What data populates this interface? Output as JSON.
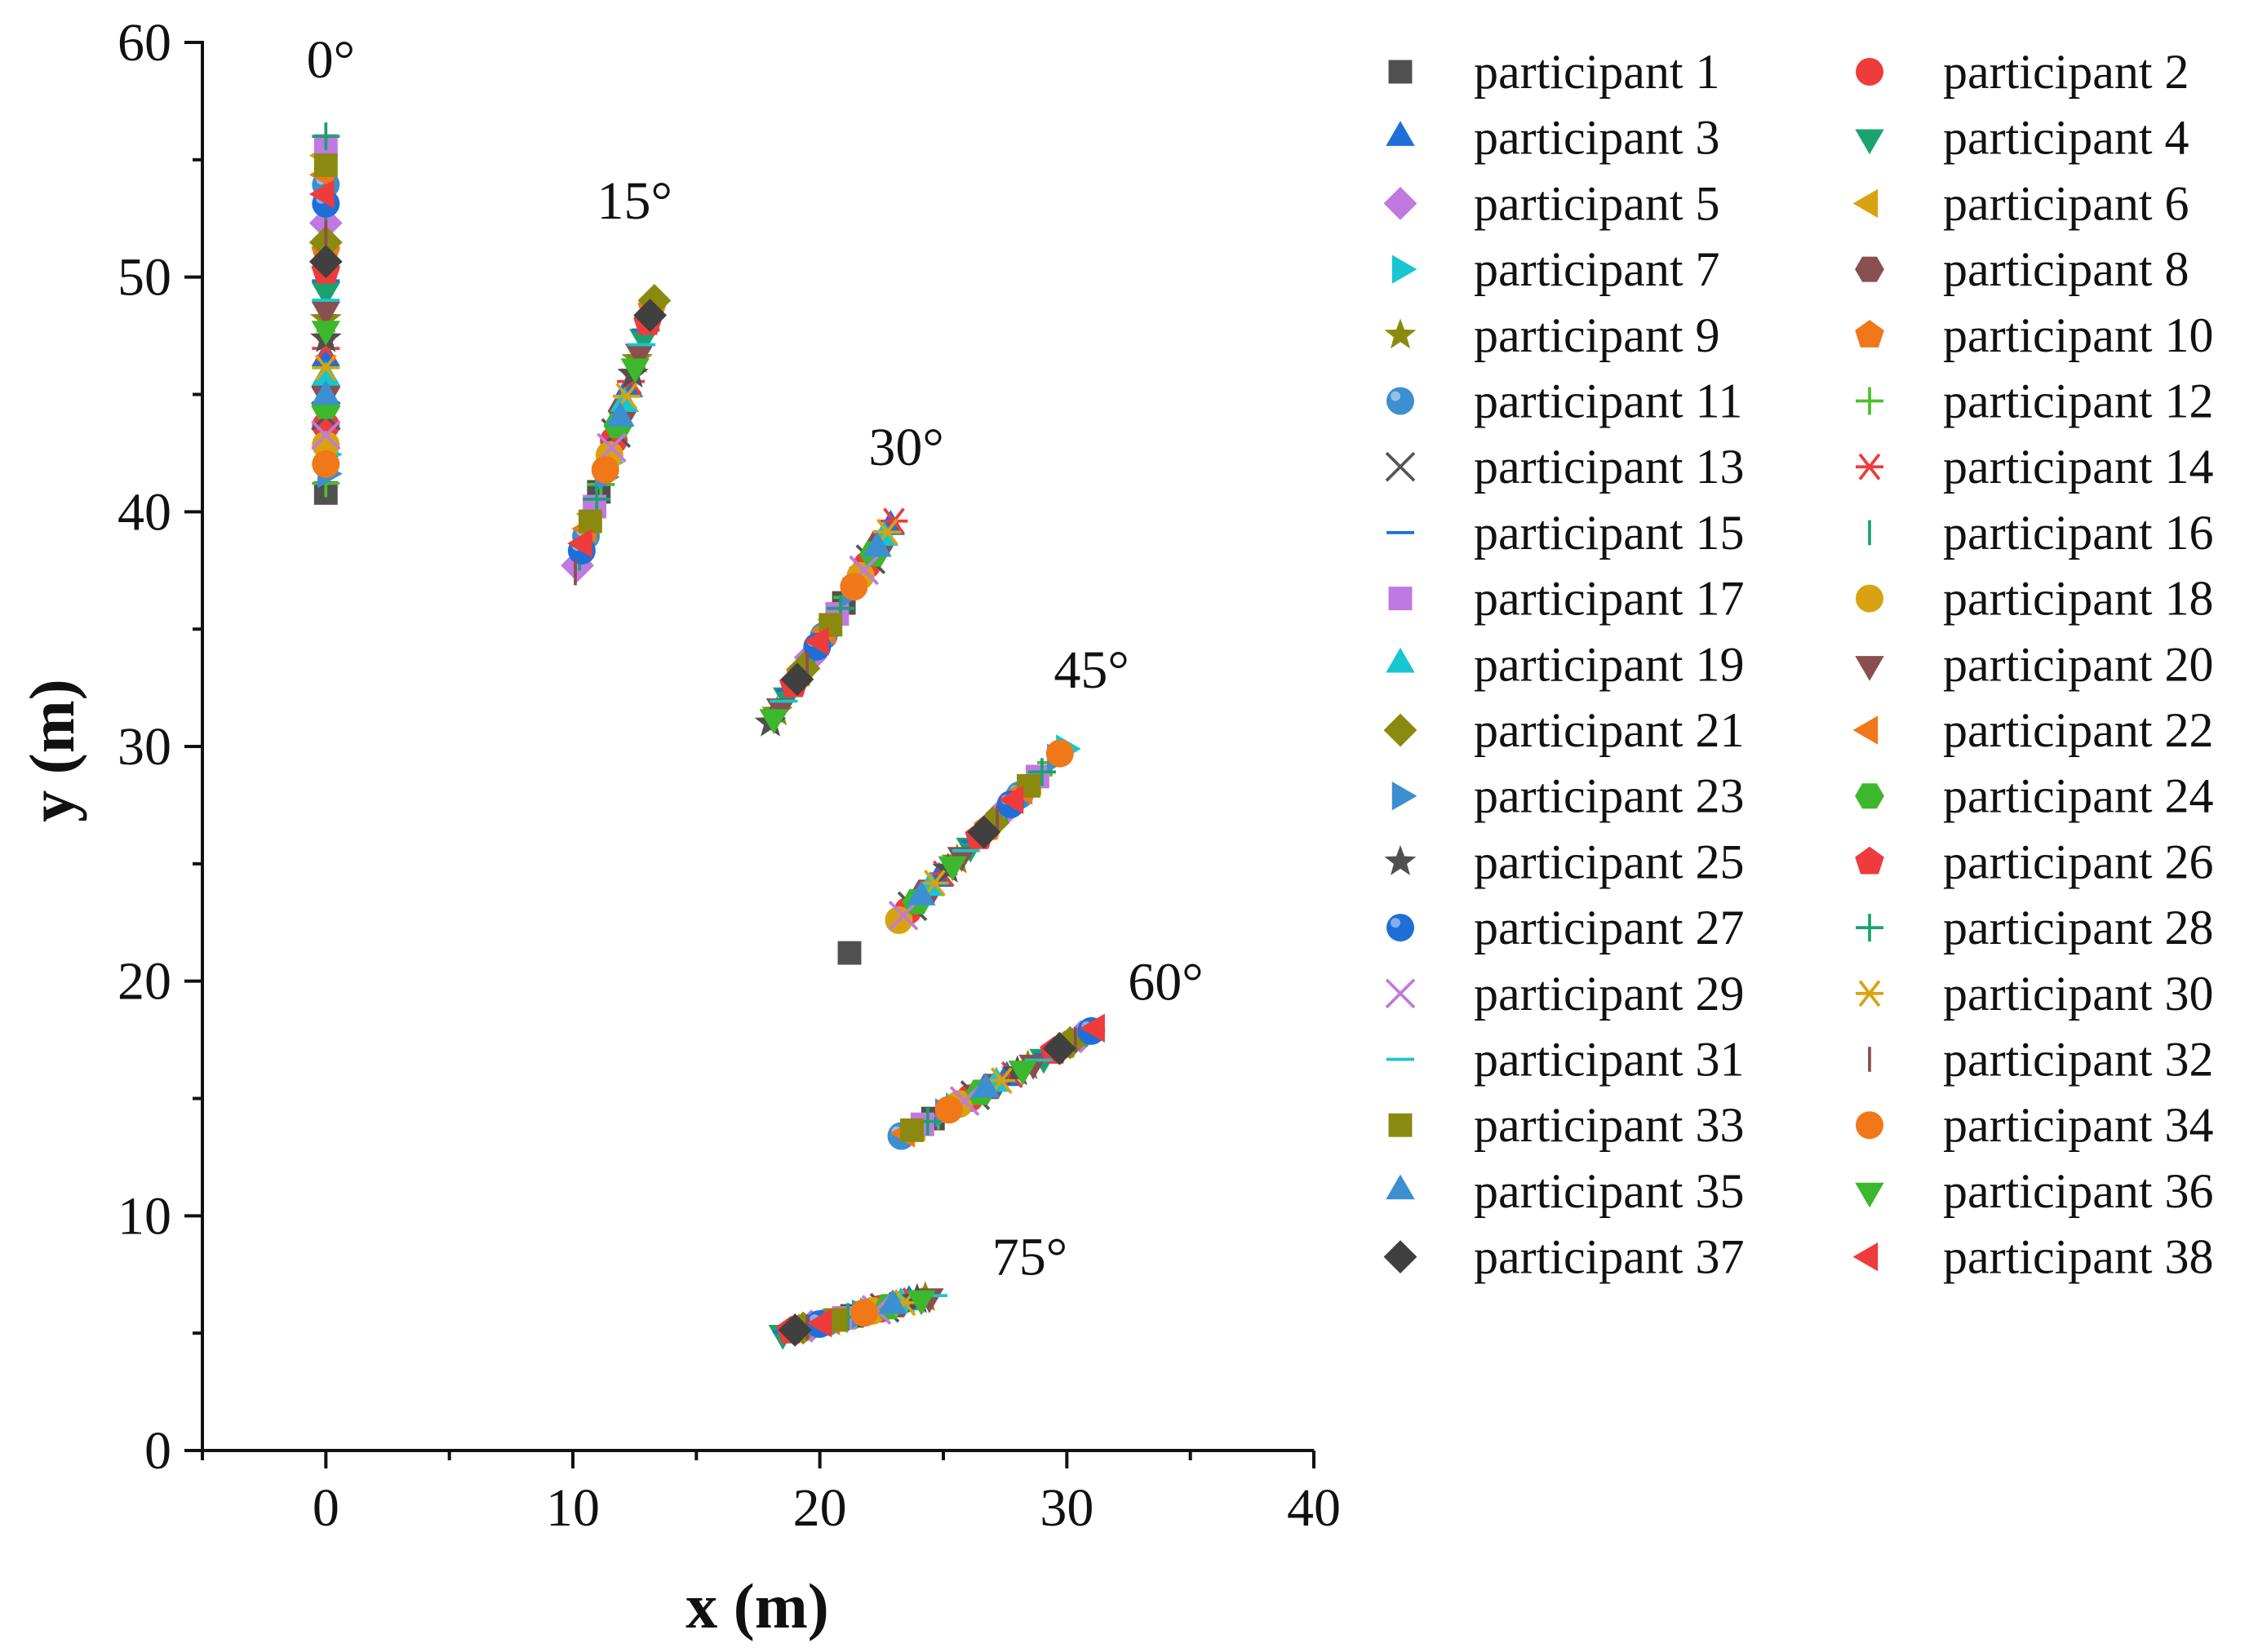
{
  "chart_data": {
    "type": "scatter",
    "xlabel": "x (m)",
    "ylabel": "y (m)",
    "xlim": [
      -5,
      40
    ],
    "ylim": [
      0,
      60
    ],
    "xticks": [
      0,
      10,
      20,
      30,
      40
    ],
    "yticks": [
      0,
      10,
      20,
      30,
      40,
      50,
      60
    ],
    "grid": false,
    "legend_position": "right",
    "annotations": [
      {
        "text": "0°",
        "x": 0.2,
        "y": 58.5
      },
      {
        "text": "15°",
        "x": 12.5,
        "y": 52.5
      },
      {
        "text": "30°",
        "x": 23.5,
        "y": 42.0
      },
      {
        "text": "45°",
        "x": 31.0,
        "y": 32.5
      },
      {
        "text": "60°",
        "x": 34.0,
        "y": 19.2
      },
      {
        "text": "75°",
        "x": 28.5,
        "y": 7.5
      }
    ],
    "groups": [
      {
        "angle": "0°",
        "start": [
          0.0,
          40.8
        ],
        "end": [
          0.0,
          56.0
        ]
      },
      {
        "angle": "15°",
        "start": [
          10.1,
          37.4
        ],
        "end": [
          13.3,
          49.0
        ]
      },
      {
        "angle": "30°",
        "start": [
          18.0,
          31.0
        ],
        "end": [
          23.0,
          39.6
        ]
      },
      {
        "angle": "45°",
        "start": [
          23.2,
          22.6
        ],
        "end": [
          29.9,
          29.9
        ]
      },
      {
        "angle": "60°",
        "start": [
          23.3,
          13.4
        ],
        "end": [
          31.2,
          18.0
        ]
      },
      {
        "angle": "75°",
        "start": [
          18.5,
          5.0
        ],
        "end": [
          24.6,
          6.6
        ]
      }
    ],
    "outliers": [
      {
        "name": "participant 1",
        "x": 21.2,
        "y": 21.2
      }
    ],
    "series": [
      {
        "name": "participant 1",
        "marker": "square",
        "color": "#505050",
        "filled": true
      },
      {
        "name": "participant 2",
        "marker": "circle",
        "color": "#ee3b3b",
        "filled": true
      },
      {
        "name": "participant 3",
        "marker": "triangle",
        "color": "#1f6fd8",
        "filled": true
      },
      {
        "name": "participant 4",
        "marker": "tri-down",
        "color": "#1aa36f",
        "filled": true
      },
      {
        "name": "participant 5",
        "marker": "diamond",
        "color": "#c079e0",
        "filled": true
      },
      {
        "name": "participant 6",
        "marker": "tri-left",
        "color": "#d9a210",
        "filled": true
      },
      {
        "name": "participant 7",
        "marker": "tri-right",
        "color": "#17c6d0",
        "filled": true
      },
      {
        "name": "participant 8",
        "marker": "hexagon",
        "color": "#8a4f4f",
        "filled": true
      },
      {
        "name": "participant 9",
        "marker": "star",
        "color": "#8a8a10",
        "filled": true
      },
      {
        "name": "participant 10",
        "marker": "pentagon",
        "color": "#f07818",
        "filled": true
      },
      {
        "name": "participant 11",
        "marker": "sphere",
        "color": "#3c8fd0",
        "filled": true
      },
      {
        "name": "participant 12",
        "marker": "plus",
        "color": "#4cbf2c",
        "filled": false
      },
      {
        "name": "participant 13",
        "marker": "cross",
        "color": "#555555",
        "filled": false
      },
      {
        "name": "participant 14",
        "marker": "asterisk",
        "color": "#ee3b3b",
        "filled": false
      },
      {
        "name": "participant 15",
        "marker": "hline",
        "color": "#1f6fd8",
        "filled": false
      },
      {
        "name": "participant 16",
        "marker": "vline",
        "color": "#1aa36f",
        "filled": false
      },
      {
        "name": "participant 17",
        "marker": "square",
        "color": "#c079e0",
        "filled": true
      },
      {
        "name": "participant 18",
        "marker": "circle",
        "color": "#d9a210",
        "filled": true
      },
      {
        "name": "participant 19",
        "marker": "triangle",
        "color": "#17c6d0",
        "filled": true
      },
      {
        "name": "participant 20",
        "marker": "tri-down",
        "color": "#8a4f4f",
        "filled": true
      },
      {
        "name": "participant 21",
        "marker": "diamond",
        "color": "#8a8a10",
        "filled": true
      },
      {
        "name": "participant 22",
        "marker": "tri-left",
        "color": "#f07818",
        "filled": true
      },
      {
        "name": "participant 23",
        "marker": "tri-right",
        "color": "#3c8fd0",
        "filled": true
      },
      {
        "name": "participant 24",
        "marker": "hexagon",
        "color": "#3cb82c",
        "filled": true
      },
      {
        "name": "participant 25",
        "marker": "star",
        "color": "#505050",
        "filled": true
      },
      {
        "name": "participant 26",
        "marker": "pentagon",
        "color": "#ee3b3b",
        "filled": true
      },
      {
        "name": "participant 27",
        "marker": "sphere",
        "color": "#1f6fd8",
        "filled": true
      },
      {
        "name": "participant 28",
        "marker": "plus",
        "color": "#1aa36f",
        "filled": false
      },
      {
        "name": "participant 29",
        "marker": "cross",
        "color": "#c079e0",
        "filled": false
      },
      {
        "name": "participant 30",
        "marker": "asterisk",
        "color": "#d9a210",
        "filled": false
      },
      {
        "name": "participant 31",
        "marker": "hline",
        "color": "#17c6d0",
        "filled": false
      },
      {
        "name": "participant 32",
        "marker": "vline",
        "color": "#8a4f4f",
        "filled": false
      },
      {
        "name": "participant 33",
        "marker": "square",
        "color": "#8a8a10",
        "filled": true
      },
      {
        "name": "participant 34",
        "marker": "circle",
        "color": "#f07818",
        "filled": true
      },
      {
        "name": "participant 35",
        "marker": "triangle",
        "color": "#3c8fd0",
        "filled": true
      },
      {
        "name": "participant 36",
        "marker": "tri-down",
        "color": "#3cb82c",
        "filled": true
      },
      {
        "name": "participant 37",
        "marker": "diamond",
        "color": "#404040",
        "filled": true
      },
      {
        "name": "participant 38",
        "marker": "tri-left",
        "color": "#ee3b3b",
        "filled": true
      }
    ]
  }
}
